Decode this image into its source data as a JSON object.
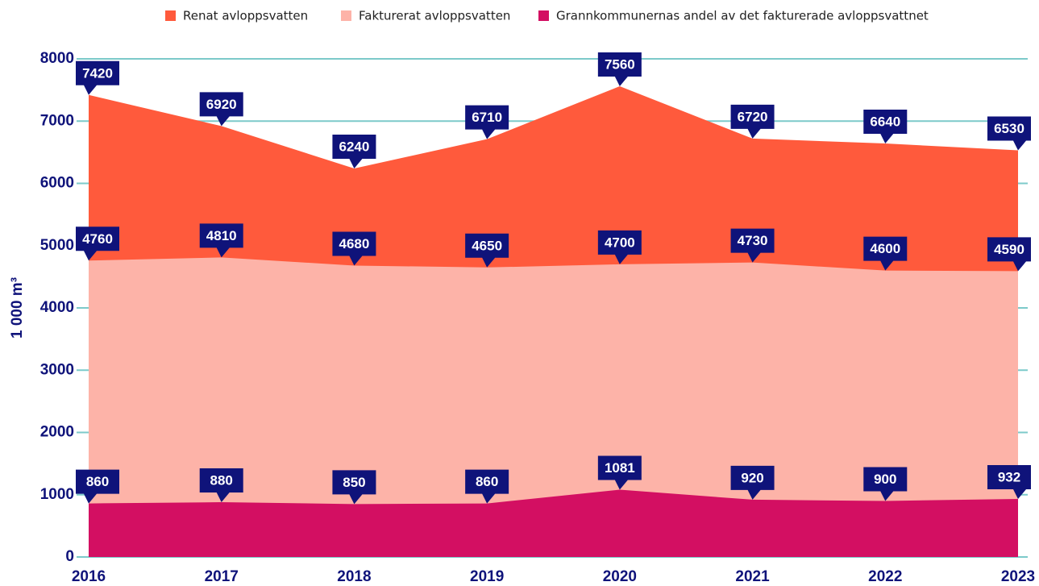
{
  "chart_data": {
    "type": "area",
    "y_label": "1 000 m³",
    "categories": [
      "2016",
      "2017",
      "2018",
      "2019",
      "2020",
      "2021",
      "2022",
      "2023"
    ],
    "series": [
      {
        "name": "Renat avloppsvatten",
        "color": "#ff5a3c",
        "values": [
          7420,
          6920,
          6240,
          6710,
          7560,
          6720,
          6640,
          6530
        ]
      },
      {
        "name": "Fakturerat avloppsvatten",
        "color": "#fdb3a8",
        "values": [
          4760,
          4810,
          4680,
          4650,
          4700,
          4730,
          4600,
          4590
        ]
      },
      {
        "name": "Grannkommunernas andel av det fakturerade avloppsvattnet",
        "color": "#d30f62",
        "values": [
          860,
          880,
          850,
          860,
          1081,
          920,
          900,
          932
        ]
      }
    ],
    "ylim": [
      0,
      8000
    ],
    "yticks": [
      0,
      1000,
      2000,
      3000,
      4000,
      5000,
      6000,
      7000,
      8000
    ],
    "grid": true,
    "legend": "top",
    "label_color": "#0f137a"
  }
}
